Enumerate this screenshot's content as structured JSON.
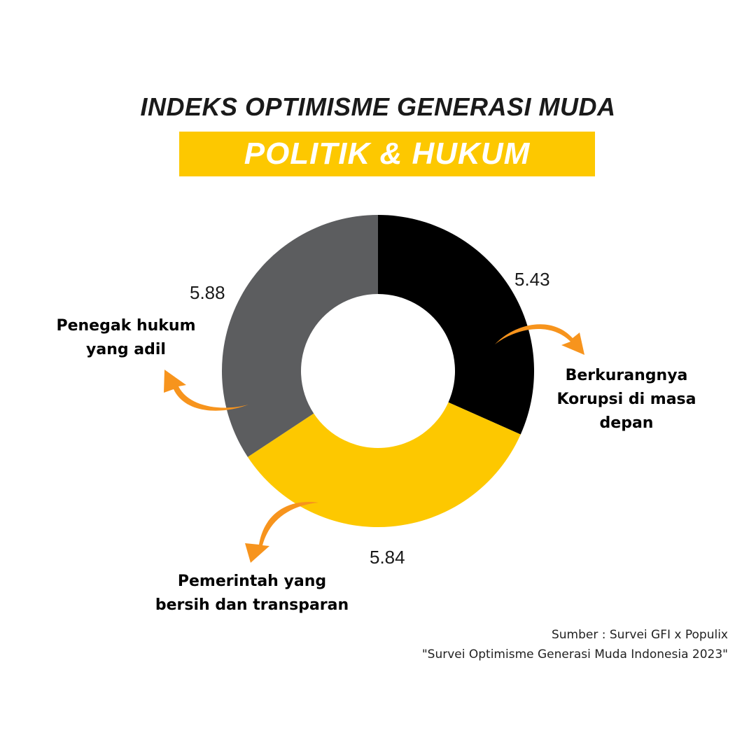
{
  "title": "INDEKS OPTIMISME GENERASI MUDA",
  "banner": "POLITIK & HUKUM",
  "colors": {
    "banner": "#FDC800",
    "arrow": "#F7941D"
  },
  "chart_data": {
    "type": "pie",
    "variant": "donut",
    "grid": false,
    "slices": [
      {
        "label": "Berkurangnya Korupsi di masa depan",
        "label_lines": [
          "Berkurangnya",
          "Korupsi di masa",
          "depan"
        ],
        "value": 5.43,
        "value_label": "5.43",
        "color": "#000000"
      },
      {
        "label": "Pemerintah yang bersih dan transparan",
        "label_lines": [
          "Pemerintah yang",
          "bersih dan transparan"
        ],
        "value": 5.84,
        "value_label": "5.84",
        "color": "#FDC800"
      },
      {
        "label": "Penegak hukum yang adil",
        "label_lines": [
          "Penegak hukum",
          "yang adil"
        ],
        "value": 5.88,
        "value_label": "5.88",
        "color": "#5C5D5F"
      }
    ]
  },
  "source": {
    "line1": "Sumber : Survei GFI x Populix",
    "line2": "\"Survei Optimisme Generasi Muda Indonesia 2023\""
  }
}
